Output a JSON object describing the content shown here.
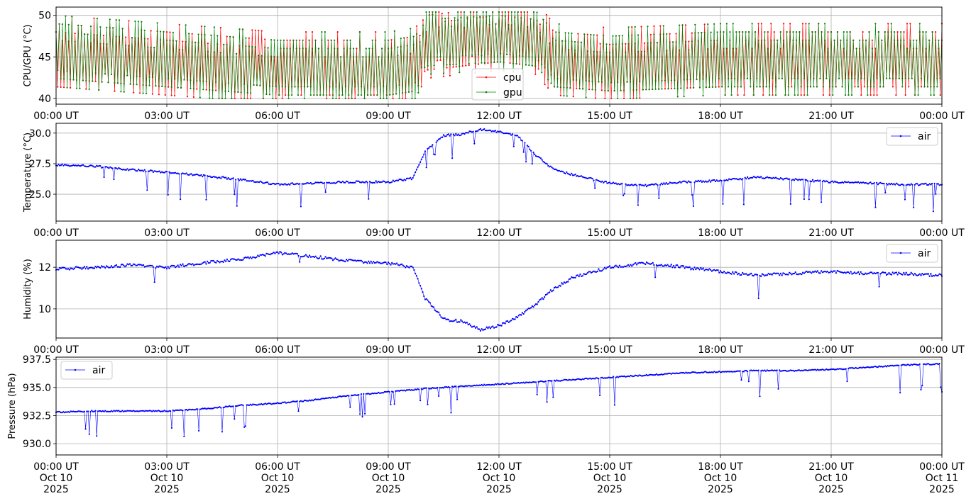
{
  "colors": {
    "cpu": "#ff0000",
    "gpu": "#008000",
    "air": "#0000ff",
    "grid": "#b0b0b0"
  },
  "x_ticks": {
    "hours": [
      "00:00 UT",
      "03:00 UT",
      "06:00 UT",
      "09:00 UT",
      "12:00 UT",
      "15:00 UT",
      "18:00 UT",
      "21:00 UT",
      "00:00 UT"
    ],
    "dates": [
      "Oct 10",
      "Oct 10",
      "Oct 10",
      "Oct 10",
      "Oct 10",
      "Oct 10",
      "Oct 10",
      "Oct 10",
      "Oct 11"
    ],
    "years": [
      "2025",
      "2025",
      "2025",
      "2025",
      "2025",
      "2025",
      "2025",
      "2025",
      "2025"
    ]
  },
  "chart_data": [
    {
      "type": "line",
      "ylabel": "CPU/GPU (°C)",
      "ylim": [
        39.3,
        51.0
      ],
      "yticks": [
        40,
        45,
        50
      ],
      "ytick_labels": [
        "40",
        "45",
        "50"
      ],
      "xlim": [
        "2025-10-10 00:00",
        "2025-10-11 00:00"
      ],
      "grid": true,
      "legend": "bottom-center",
      "series": [
        {
          "name": "cpu",
          "points": [
            [
              "2025-10-10 00:00",
              45.0
            ],
            [
              "2025-10-10 03:00",
              44.0
            ],
            [
              "2025-10-10 06:00",
              43.0
            ],
            [
              "2025-10-10 09:00",
              43.0
            ],
            [
              "2025-10-10 09:45",
              43.5
            ],
            [
              "2025-10-10 10:00",
              46.0
            ],
            [
              "2025-10-10 12:00",
              47.0
            ],
            [
              "2025-10-10 13:00",
              46.5
            ],
            [
              "2025-10-10 13:30",
              44.0
            ],
            [
              "2025-10-10 15:00",
              43.5
            ],
            [
              "2025-10-10 18:00",
              44.0
            ],
            [
              "2025-10-10 21:00",
              44.0
            ],
            [
              "2025-10-11 00:00",
              44.0
            ]
          ]
        },
        {
          "name": "gpu",
          "points": [
            [
              "2025-10-10 00:00",
              45.0
            ],
            [
              "2025-10-10 03:00",
              44.0
            ],
            [
              "2025-10-10 06:00",
              43.0
            ],
            [
              "2025-10-10 09:00",
              43.0
            ],
            [
              "2025-10-10 09:45",
              43.5
            ],
            [
              "2025-10-10 10:00",
              46.5
            ],
            [
              "2025-10-10 12:00",
              47.0
            ],
            [
              "2025-10-10 13:00",
              46.5
            ],
            [
              "2025-10-10 13:30",
              44.0
            ],
            [
              "2025-10-10 15:00",
              43.5
            ],
            [
              "2025-10-10 18:00",
              44.0
            ],
            [
              "2025-10-10 21:00",
              44.0
            ],
            [
              "2025-10-11 00:00",
              44.0
            ]
          ]
        }
      ]
    },
    {
      "type": "line",
      "ylabel": "Temperature (°C)",
      "ylim": [
        22.8,
        30.8
      ],
      "yticks": [
        25.0,
        27.5,
        30.0
      ],
      "ytick_labels": [
        "25.0",
        "27.5",
        "30.0"
      ],
      "xlim": [
        "2025-10-10 00:00",
        "2025-10-11 00:00"
      ],
      "grid": true,
      "legend": "top-right",
      "series": [
        {
          "name": "air",
          "points": [
            [
              "2025-10-10 00:00",
              27.4
            ],
            [
              "2025-10-10 01:00",
              27.3
            ],
            [
              "2025-10-10 02:00",
              27.0
            ],
            [
              "2025-10-10 03:00",
              26.8
            ],
            [
              "2025-10-10 04:00",
              26.5
            ],
            [
              "2025-10-10 05:00",
              26.2
            ],
            [
              "2025-10-10 06:00",
              25.8
            ],
            [
              "2025-10-10 07:00",
              25.9
            ],
            [
              "2025-10-10 08:00",
              26.0
            ],
            [
              "2025-10-10 09:00",
              26.0
            ],
            [
              "2025-10-10 09:40",
              26.3
            ],
            [
              "2025-10-10 10:00",
              28.5
            ],
            [
              "2025-10-10 10:30",
              29.8
            ],
            [
              "2025-10-10 11:00",
              29.9
            ],
            [
              "2025-10-10 11:30",
              30.3
            ],
            [
              "2025-10-10 12:00",
              30.1
            ],
            [
              "2025-10-10 12:30",
              29.8
            ],
            [
              "2025-10-10 13:00",
              28.2
            ],
            [
              "2025-10-10 13:30",
              27.0
            ],
            [
              "2025-10-10 14:00",
              26.6
            ],
            [
              "2025-10-10 15:00",
              25.9
            ],
            [
              "2025-10-10 16:00",
              25.7
            ],
            [
              "2025-10-10 17:00",
              26.0
            ],
            [
              "2025-10-10 18:00",
              26.1
            ],
            [
              "2025-10-10 19:00",
              26.4
            ],
            [
              "2025-10-10 20:00",
              26.2
            ],
            [
              "2025-10-10 21:00",
              26.0
            ],
            [
              "2025-10-10 22:00",
              25.9
            ],
            [
              "2025-10-10 23:00",
              25.8
            ],
            [
              "2025-10-11 00:00",
              25.8
            ]
          ]
        }
      ]
    },
    {
      "type": "line",
      "ylabel": "Humidity (%)",
      "ylim": [
        8.6,
        13.3
      ],
      "yticks": [
        10,
        12
      ],
      "ytick_labels": [
        "10",
        "12"
      ],
      "xlim": [
        "2025-10-10 00:00",
        "2025-10-11 00:00"
      ],
      "grid": true,
      "legend": "top-right",
      "series": [
        {
          "name": "air",
          "points": [
            [
              "2025-10-10 00:00",
              11.9
            ],
            [
              "2025-10-10 01:00",
              12.0
            ],
            [
              "2025-10-10 02:00",
              12.1
            ],
            [
              "2025-10-10 03:00",
              12.0
            ],
            [
              "2025-10-10 04:00",
              12.2
            ],
            [
              "2025-10-10 05:00",
              12.4
            ],
            [
              "2025-10-10 06:00",
              12.7
            ],
            [
              "2025-10-10 07:00",
              12.5
            ],
            [
              "2025-10-10 08:00",
              12.3
            ],
            [
              "2025-10-10 09:00",
              12.2
            ],
            [
              "2025-10-10 09:40",
              12.0
            ],
            [
              "2025-10-10 10:00",
              10.5
            ],
            [
              "2025-10-10 10:30",
              9.5
            ],
            [
              "2025-10-10 11:00",
              9.4
            ],
            [
              "2025-10-10 11:30",
              9.0
            ],
            [
              "2025-10-10 12:00",
              9.2
            ],
            [
              "2025-10-10 12:30",
              9.6
            ],
            [
              "2025-10-10 13:00",
              10.2
            ],
            [
              "2025-10-10 13:30",
              11.0
            ],
            [
              "2025-10-10 14:00",
              11.5
            ],
            [
              "2025-10-10 15:00",
              12.0
            ],
            [
              "2025-10-10 16:00",
              12.2
            ],
            [
              "2025-10-10 17:00",
              12.0
            ],
            [
              "2025-10-10 18:00",
              11.8
            ],
            [
              "2025-10-10 19:00",
              11.6
            ],
            [
              "2025-10-10 20:00",
              11.7
            ],
            [
              "2025-10-10 21:00",
              11.8
            ],
            [
              "2025-10-10 22:00",
              11.7
            ],
            [
              "2025-10-10 23:00",
              11.7
            ],
            [
              "2025-10-11 00:00",
              11.6
            ]
          ]
        }
      ]
    },
    {
      "type": "line",
      "ylabel": "Pressure (hPa)",
      "ylim": [
        929.0,
        937.7
      ],
      "yticks": [
        930.0,
        932.5,
        935.0,
        937.5
      ],
      "ytick_labels": [
        "930.0",
        "932.5",
        "935.0",
        "937.5"
      ],
      "xlim": [
        "2025-10-10 00:00",
        "2025-10-11 00:00"
      ],
      "grid": true,
      "legend": "top-left",
      "series": [
        {
          "name": "air",
          "points": [
            [
              "2025-10-10 00:00",
              932.8
            ],
            [
              "2025-10-10 01:00",
              932.9
            ],
            [
              "2025-10-10 02:00",
              932.9
            ],
            [
              "2025-10-10 03:00",
              932.9
            ],
            [
              "2025-10-10 04:00",
              933.1
            ],
            [
              "2025-10-10 05:00",
              933.4
            ],
            [
              "2025-10-10 06:00",
              933.6
            ],
            [
              "2025-10-10 07:00",
              933.9
            ],
            [
              "2025-10-10 08:00",
              934.3
            ],
            [
              "2025-10-10 09:00",
              934.6
            ],
            [
              "2025-10-10 10:00",
              934.9
            ],
            [
              "2025-10-10 11:00",
              935.1
            ],
            [
              "2025-10-10 12:00",
              935.3
            ],
            [
              "2025-10-10 13:00",
              935.5
            ],
            [
              "2025-10-10 14:00",
              935.7
            ],
            [
              "2025-10-10 15:00",
              935.9
            ],
            [
              "2025-10-10 16:00",
              936.1
            ],
            [
              "2025-10-10 17:00",
              936.3
            ],
            [
              "2025-10-10 18:00",
              936.4
            ],
            [
              "2025-10-10 19:00",
              936.5
            ],
            [
              "2025-10-10 20:00",
              936.5
            ],
            [
              "2025-10-10 21:00",
              936.6
            ],
            [
              "2025-10-10 22:00",
              936.8
            ],
            [
              "2025-10-10 23:00",
              937.0
            ],
            [
              "2025-10-11 00:00",
              937.1
            ]
          ]
        }
      ]
    }
  ]
}
